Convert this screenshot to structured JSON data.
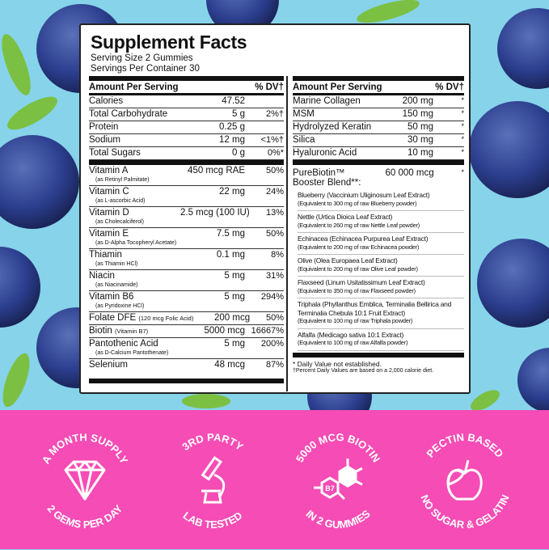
{
  "colors": {
    "background": "#86d3ea",
    "band": "#f54cb5",
    "berry": "#2c3f8f",
    "leaf": "#7cc043"
  },
  "panel": {
    "title": "Supplement Facts",
    "serving_size": "Serving Size 2 Gummies",
    "servings_per_container": "Servings Per Container 30",
    "left": {
      "header": {
        "amount": "Amount Per Serving",
        "dv": "% DV†"
      },
      "macros": [
        {
          "name": "Calories",
          "amount": "47.52",
          "dv": ""
        },
        {
          "name": "Total Carbohydrate",
          "amount": "5 g",
          "dv": "2%†"
        },
        {
          "name": "Protein",
          "amount": "0.25 g",
          "dv": ""
        },
        {
          "name": "Sodium",
          "amount": "12 mg",
          "dv": "<1%†"
        },
        {
          "name": "Total Sugars",
          "amount": "0 g",
          "dv": "0%*"
        }
      ],
      "vitamins": [
        {
          "name": "Vitamin A",
          "sub": "(as Retinyl Palmitate)",
          "amount": "450 mcg RAE",
          "dv": "50%"
        },
        {
          "name": "Vitamin C",
          "sub": "(as L-ascorbic Acid)",
          "amount": "22 mg",
          "dv": "24%"
        },
        {
          "name": "Vitamin D",
          "sub": "(as Cholecalciferol)",
          "amount": "2.5 mcg (100 IU)",
          "dv": "13%"
        },
        {
          "name": "Vitamin E",
          "sub": "(as D-Alpha Tocopheryl Acetate)",
          "amount": "7.5 mg",
          "dv": "50%"
        },
        {
          "name": "Thiamin",
          "sub": "(as Thiamin HCl)",
          "amount": "0.1 mg",
          "dv": "8%"
        },
        {
          "name": "Niacin",
          "sub": "(as Niacinamide)",
          "amount": "5 mg",
          "dv": "31%"
        },
        {
          "name": "Vitamin B6",
          "sub": "(as Pyridoxine HCl)",
          "amount": "5 mg",
          "dv": "294%"
        },
        {
          "name": "Folate DFE",
          "inline": "(120 mcg Folic Acid)",
          "amount": "200 mcg",
          "dv": "50%"
        },
        {
          "name": "Biotin",
          "inline": "(Vitamin B7)",
          "amount": "5000 mcg",
          "dv": "16667%"
        },
        {
          "name": "Pantothenic Acid",
          "sub": "(as D-Calcium Pantothenate)",
          "amount": "5 mg",
          "dv": "200%"
        },
        {
          "name": "Selenium",
          "amount": "48 mcg",
          "dv": "87%"
        }
      ]
    },
    "right": {
      "header": {
        "amount": "Amount Per Serving",
        "dv": "% DV†"
      },
      "items": [
        {
          "name": "Marine Collagen",
          "amount": "200 mg",
          "dv": "*"
        },
        {
          "name": "MSM",
          "amount": "150 mg",
          "dv": "*"
        },
        {
          "name": "Hydrolyzed Keratin",
          "amount": "50 mg",
          "dv": "*"
        },
        {
          "name": "Silica",
          "amount": "30 mg",
          "dv": "*"
        },
        {
          "name": "Hyaluronic Acid",
          "amount": "10 mg",
          "dv": "*"
        }
      ],
      "blend": {
        "name": "PureBiotin™ Booster Blend**:",
        "amount": "60 000 mcg",
        "dv": "*"
      },
      "blend_items": [
        {
          "name": "Blueberry (Vaccinium Uliginosum Leaf Extract)",
          "eq": "(Equivalent to 300 mg of raw Blueberry powder)"
        },
        {
          "name": "Nettle (Urtica Dioica Leaf Extract)",
          "eq": "(Equivalent to 260 mg of raw Nettle Leaf powder)"
        },
        {
          "name": "Echinacea (Echinacea Purpurea Leaf Extract)",
          "eq": "(Equivalent to 200 mg of raw Echinacea powder)"
        },
        {
          "name": "Olive (Olea Europaea Leaf Extract)",
          "eq": "(Equivalent to 200 mg of raw Olive Leaf powder)"
        },
        {
          "name": "Flaxseed (Linum Usitatissimum Leaf Extract)",
          "eq": "(Equivalent to 350 mg of raw Flaxseed powder)"
        },
        {
          "name": "Triphala (Phyllanthus Emblica, Terminalia Bellirica and Terminalia Chebula 10:1 Fruit Extract)",
          "eq": "(Equivalent to 100 mg of raw Triphala powder)"
        },
        {
          "name": "Alfalfa (Medicago sativa 10:1 Extract)",
          "eq": "(Equivalent to 100 mg of raw Alfalfa powder)"
        }
      ],
      "footnote1": "* Daily Value not established.",
      "footnote2": "†Percent Daily Values are based on a 2,000 calorie diet."
    }
  },
  "badges": [
    {
      "top": "A MONTH SUPPLY",
      "bottom": "2 GEMS PER DAY",
      "icon": "diamond-icon"
    },
    {
      "top": "3RD PARTY",
      "bottom": "LAB TESTED",
      "icon": "microscope-icon"
    },
    {
      "top": "5000 MCG BIOTIN",
      "bottom": "IN 2 GUMMIES",
      "icon": "molecule-icon",
      "icon_label": "B7"
    },
    {
      "top": "PECTIN BASED",
      "bottom": "NO SUGAR & GELATIN",
      "icon": "apple-icon"
    }
  ]
}
